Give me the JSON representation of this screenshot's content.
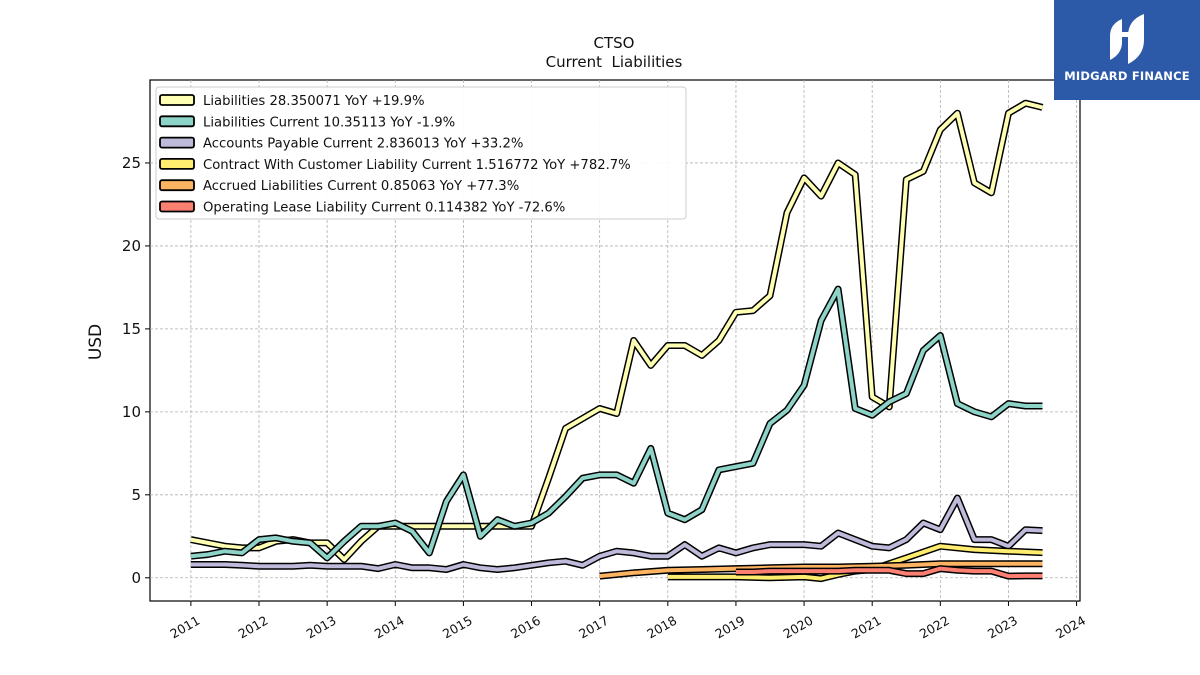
{
  "brand": {
    "name": "MIDGARD FINANCE",
    "bg_color": "#2d5aa8"
  },
  "chart_data": {
    "type": "line",
    "title": "CTSO",
    "subtitle": "Current  Liabilities",
    "ylabel": "USD",
    "xlabel": "",
    "ylim": [
      -1.4,
      30
    ],
    "xlim": [
      2010.4,
      2024.05
    ],
    "y_ticks": [
      0,
      5,
      10,
      15,
      20,
      25
    ],
    "x_ticks": [
      2011,
      2012,
      2013,
      2014,
      2015,
      2016,
      2017,
      2018,
      2019,
      2020,
      2021,
      2022,
      2023,
      2024
    ],
    "grid": true,
    "legend_position": "top-left",
    "series": [
      {
        "name": "Liabilities",
        "legend": "Liabilities  28.350071 YoY +19.9%",
        "color": "#ffffb3",
        "x": [
          2011.0,
          2011.25,
          2011.5,
          2011.75,
          2012.0,
          2012.25,
          2012.5,
          2012.75,
          2013.0,
          2013.25,
          2013.5,
          2013.75,
          2014.0,
          2014.25,
          2014.5,
          2014.75,
          2015.0,
          2015.25,
          2015.5,
          2015.75,
          2016.0,
          2016.25,
          2016.5,
          2016.75,
          2017.0,
          2017.25,
          2017.5,
          2017.75,
          2018.0,
          2018.25,
          2018.5,
          2018.75,
          2019.0,
          2019.25,
          2019.5,
          2019.75,
          2020.0,
          2020.25,
          2020.5,
          2020.75,
          2021.0,
          2021.25,
          2021.5,
          2021.75,
          2022.0,
          2022.25,
          2022.5,
          2022.75,
          2023.0,
          2023.25,
          2023.5
        ],
        "y": [
          2.3,
          2.1,
          1.9,
          1.8,
          1.8,
          2.2,
          2.3,
          2.1,
          2.1,
          1.1,
          2.2,
          3.1,
          3.1,
          3.1,
          3.1,
          3.1,
          3.1,
          3.1,
          3.1,
          3.1,
          3.1,
          6.0,
          9.0,
          9.6,
          10.2,
          9.9,
          14.3,
          12.8,
          14.0,
          14.0,
          13.4,
          14.3,
          16.0,
          16.1,
          17.0,
          22.0,
          24.1,
          23.0,
          25.0,
          24.3,
          10.9,
          10.3,
          24.0,
          24.5,
          27.0,
          28.0,
          23.8,
          23.2,
          28.0,
          28.6,
          28.35
        ]
      },
      {
        "name": "Liabilities Current",
        "legend": "Liabilities Current  10.35113 YoY -1.9%",
        "color": "#8dd3c7",
        "x": [
          2011.0,
          2011.25,
          2011.5,
          2011.75,
          2012.0,
          2012.25,
          2012.5,
          2012.75,
          2013.0,
          2013.25,
          2013.5,
          2013.75,
          2014.0,
          2014.25,
          2014.5,
          2014.75,
          2015.0,
          2015.25,
          2015.5,
          2015.75,
          2016.0,
          2016.25,
          2016.5,
          2016.75,
          2017.0,
          2017.25,
          2017.5,
          2017.75,
          2018.0,
          2018.25,
          2018.5,
          2018.75,
          2019.0,
          2019.25,
          2019.5,
          2019.75,
          2020.0,
          2020.25,
          2020.5,
          2020.75,
          2021.0,
          2021.25,
          2021.5,
          2021.75,
          2022.0,
          2022.25,
          2022.5,
          2022.75,
          2023.0,
          2023.25,
          2023.5
        ],
        "y": [
          1.3,
          1.4,
          1.6,
          1.5,
          2.3,
          2.4,
          2.2,
          2.1,
          1.2,
          2.2,
          3.1,
          3.1,
          3.3,
          2.8,
          1.5,
          4.6,
          6.2,
          2.5,
          3.5,
          3.1,
          3.3,
          3.9,
          4.9,
          6.0,
          6.2,
          6.2,
          5.7,
          7.8,
          3.9,
          3.5,
          4.1,
          6.5,
          6.7,
          6.9,
          9.3,
          10.1,
          11.6,
          15.5,
          17.4,
          10.2,
          9.8,
          10.6,
          11.1,
          13.7,
          14.6,
          10.5,
          10.0,
          9.7,
          10.5,
          10.35,
          10.35
        ]
      },
      {
        "name": "Accounts Payable Current",
        "legend": "Accounts Payable Current  2.836013 YoY +33.2%",
        "color": "#bebada",
        "x": [
          2011.0,
          2011.25,
          2011.5,
          2011.75,
          2012.0,
          2012.25,
          2012.5,
          2012.75,
          2013.0,
          2013.25,
          2013.5,
          2013.75,
          2014.0,
          2014.25,
          2014.5,
          2014.75,
          2015.0,
          2015.25,
          2015.5,
          2015.75,
          2016.0,
          2016.25,
          2016.5,
          2016.75,
          2017.0,
          2017.25,
          2017.5,
          2017.75,
          2018.0,
          2018.25,
          2018.5,
          2018.75,
          2019.0,
          2019.25,
          2019.5,
          2019.75,
          2020.0,
          2020.25,
          2020.5,
          2020.75,
          2021.0,
          2021.25,
          2021.5,
          2021.75,
          2022.0,
          2022.25,
          2022.5,
          2022.75,
          2023.0,
          2023.25,
          2023.5
        ],
        "y": [
          0.8,
          0.8,
          0.8,
          0.75,
          0.7,
          0.7,
          0.7,
          0.75,
          0.7,
          0.7,
          0.7,
          0.55,
          0.8,
          0.6,
          0.6,
          0.5,
          0.8,
          0.6,
          0.5,
          0.6,
          0.75,
          0.9,
          1.0,
          0.75,
          1.3,
          1.6,
          1.5,
          1.3,
          1.3,
          2.0,
          1.3,
          1.8,
          1.5,
          1.8,
          2.0,
          2.0,
          2.0,
          1.9,
          2.7,
          2.3,
          1.9,
          1.8,
          2.3,
          3.3,
          2.9,
          4.8,
          2.3,
          2.3,
          1.9,
          2.9,
          2.84
        ]
      },
      {
        "name": "Contract With Customer Liability Current",
        "legend": "Contract With Customer Liability Current  1.516772 YoY +782.7%",
        "color": "#ffed6f",
        "x": [
          2018.0,
          2018.5,
          2019.0,
          2019.5,
          2020.0,
          2020.25,
          2020.5,
          2020.75,
          2021.0,
          2021.5,
          2022.0,
          2022.5,
          2023.0,
          2023.5
        ],
        "y": [
          0.05,
          0.05,
          0.05,
          0.0,
          0.05,
          -0.05,
          0.2,
          0.4,
          0.5,
          1.2,
          1.9,
          1.7,
          1.6,
          1.52
        ]
      },
      {
        "name": "Accrued Liabilities Current",
        "legend": "Accrued Liabilities Current  0.85063 YoY +77.3%",
        "color": "#fdb462",
        "x": [
          2017.0,
          2017.5,
          2018.0,
          2018.5,
          2019.0,
          2019.5,
          2020.0,
          2020.5,
          2021.0,
          2021.5,
          2022.0,
          2022.5,
          2023.0,
          2023.5
        ],
        "y": [
          0.1,
          0.3,
          0.45,
          0.5,
          0.55,
          0.6,
          0.65,
          0.65,
          0.7,
          0.75,
          0.85,
          0.85,
          0.85,
          0.85
        ]
      },
      {
        "name": "Operating Lease Liability Current",
        "legend": "Operating Lease Liability Current  0.114382 YoY -72.6%",
        "color": "#fb8072",
        "x": [
          2019.0,
          2019.25,
          2019.5,
          2019.75,
          2020.0,
          2020.25,
          2020.5,
          2020.75,
          2021.0,
          2021.25,
          2021.5,
          2021.75,
          2022.0,
          2022.25,
          2022.5,
          2022.75,
          2023.0,
          2023.25,
          2023.5
        ],
        "y": [
          0.35,
          0.35,
          0.4,
          0.4,
          0.4,
          0.4,
          0.4,
          0.45,
          0.45,
          0.45,
          0.25,
          0.25,
          0.55,
          0.45,
          0.4,
          0.4,
          0.1,
          0.11,
          0.11
        ]
      }
    ]
  }
}
